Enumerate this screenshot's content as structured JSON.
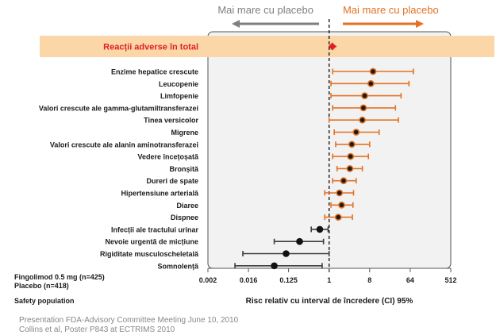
{
  "chart_data": {
    "type": "scatter",
    "subtype": "forest-plot",
    "direction_labels": {
      "left": "Mai mare cu placebo",
      "right": "Mai mare cu placebo"
    },
    "colors": {
      "left_label": "#7f7f7f",
      "right_label": "#e37222",
      "orange": "#e37222",
      "dark": "#3c3c3c",
      "total_row_bg": "#fbd7a8",
      "total_text": "#e02020",
      "total_marker": "#e02020",
      "plot_bg": "#f2f2f2"
    },
    "total": {
      "label": "Reacții adverse în total",
      "value": 1.18,
      "ci": [
        1.0,
        1.45
      ]
    },
    "rows": [
      {
        "label": "Enzime hepatice crescute",
        "value": 9.5,
        "ci": [
          1.2,
          75
        ],
        "color": "orange"
      },
      {
        "label": "Leucopenie",
        "value": 8.5,
        "ci": [
          1.1,
          60
        ],
        "color": "orange"
      },
      {
        "label": "Limfopenie",
        "value": 6.2,
        "ci": [
          1.1,
          40
        ],
        "color": "orange"
      },
      {
        "label": "Valori crescute ale gamma-glutamiltransferazei",
        "value": 5.8,
        "ci": [
          1.2,
          30
        ],
        "color": "orange"
      },
      {
        "label": "Tinea versicolor",
        "value": 5.5,
        "ci": [
          1.0,
          35
        ],
        "color": "orange"
      },
      {
        "label": "Migrene",
        "value": 4.0,
        "ci": [
          1.3,
          13
        ],
        "color": "orange"
      },
      {
        "label": "Valori crescute ale alanin aminotransferazei",
        "value": 3.2,
        "ci": [
          1.4,
          8
        ],
        "color": "orange"
      },
      {
        "label": "Vedere încețoșată",
        "value": 3.0,
        "ci": [
          1.2,
          7.5
        ],
        "color": "orange"
      },
      {
        "label": "Bronșită",
        "value": 2.9,
        "ci": [
          1.5,
          5.5
        ],
        "color": "orange"
      },
      {
        "label": "Dureri de spate",
        "value": 2.1,
        "ci": [
          1.2,
          4.0
        ],
        "color": "orange"
      },
      {
        "label": "Hipertensiune arterială",
        "value": 1.7,
        "ci": [
          0.8,
          3.5
        ],
        "color": "orange"
      },
      {
        "label": "Diaree",
        "value": 1.9,
        "ci": [
          1.1,
          3.4
        ],
        "color": "orange"
      },
      {
        "label": "Dispnee",
        "value": 1.6,
        "ci": [
          0.8,
          3.3
        ],
        "color": "orange"
      },
      {
        "label": "Infecții ale tractului urinar",
        "value": 0.62,
        "ci": [
          0.4,
          0.95
        ],
        "color": "dark"
      },
      {
        "label": "Nevoie urgentă de micțiune",
        "value": 0.22,
        "ci": [
          0.06,
          0.75
        ],
        "color": "dark"
      },
      {
        "label": "Rigiditate musculoscheletală",
        "value": 0.11,
        "ci": [
          0.012,
          1.0
        ],
        "color": "dark"
      },
      {
        "label": "Somnolență",
        "value": 0.06,
        "ci": [
          0.008,
          0.7
        ],
        "color": "dark"
      }
    ],
    "x_axis": {
      "scale": "log2",
      "ticks": [
        0.002,
        0.016,
        0.125,
        1,
        8,
        64,
        512
      ],
      "tick_labels": [
        "0.002",
        "0.016",
        "0.125",
        "1",
        "8",
        "64",
        "512"
      ],
      "xlim": [
        0.002,
        512
      ],
      "xlabel": "Risc relativ cu interval de încredere (CI) 95%",
      "reference_line": 1
    },
    "side_notes": {
      "treatment": "Fingolimod 0.5 mg (n=425)",
      "placebo": "Placebo (n=418)",
      "population": "Safety population"
    }
  },
  "footnotes": {
    "line1": "Presentation FDA-Advisory Committee Meeting June 10, 2010",
    "line2": "Collins et al, Poster P843 at ECTRIMS 2010"
  }
}
